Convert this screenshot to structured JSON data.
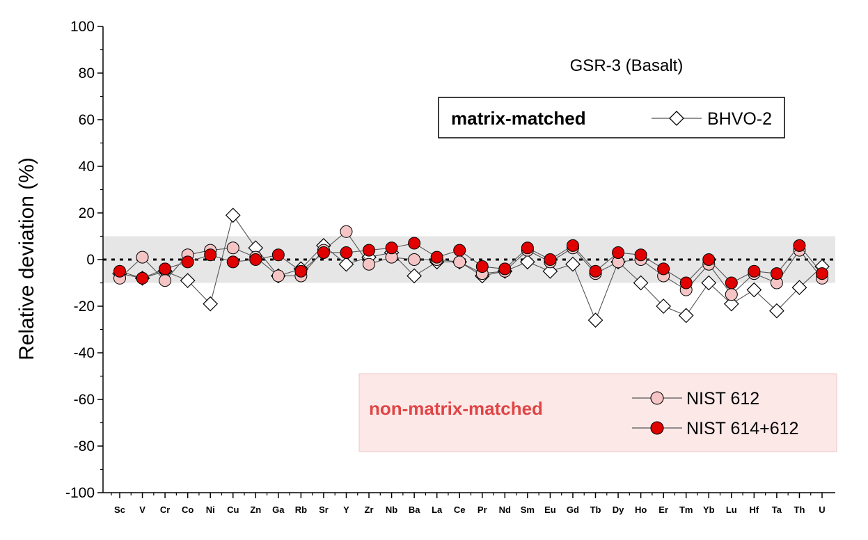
{
  "chart_data": {
    "type": "scatter",
    "title": "GSR-3 (Basalt)",
    "xlabel": "",
    "ylabel": "Relative deviation (%)",
    "ylim": [
      -100,
      100
    ],
    "yticks": [
      100,
      80,
      60,
      40,
      20,
      0,
      -20,
      -40,
      -60,
      -80,
      -100
    ],
    "reference_band": [
      -10,
      10
    ],
    "reference_line": 0,
    "categories": [
      "Sc",
      "V",
      "Cr",
      "Co",
      "Ni",
      "Cu",
      "Zn",
      "Ga",
      "Rb",
      "Sr",
      "Y",
      "Zr",
      "Nb",
      "Ba",
      "La",
      "Ce",
      "Pr",
      "Nd",
      "Sm",
      "Eu",
      "Gd",
      "Tb",
      "Dy",
      "Ho",
      "Er",
      "Tm",
      "Yb",
      "Lu",
      "Hf",
      "Ta",
      "Th",
      "U"
    ],
    "legend_groups": [
      {
        "label": "matrix-matched",
        "color": "#000000",
        "series": [
          "BHVO-2"
        ]
      },
      {
        "label": "non-matrix-matched",
        "color": "#e04545",
        "series": [
          "NIST 612",
          "NIST 614+612"
        ]
      }
    ],
    "series": [
      {
        "name": "BHVO-2",
        "marker": "diamond-open",
        "color": "#000000",
        "values": [
          -6,
          -8,
          -5,
          -9,
          -19,
          19,
          5,
          -7,
          -4,
          6,
          -2,
          1,
          3,
          -7,
          -1,
          -1,
          -7,
          -5,
          -1,
          -5,
          -2,
          -26,
          -1,
          -10,
          -20,
          -24,
          -10,
          -19,
          -13,
          -22,
          -12,
          -3
        ]
      },
      {
        "name": "NIST 612",
        "marker": "circle",
        "color": "#f5c5c5",
        "values": [
          -8,
          1,
          -9,
          2,
          4,
          5,
          1,
          -7,
          -7,
          4,
          12,
          -2,
          1,
          0,
          0,
          -1,
          -6,
          -5,
          4,
          -1,
          5,
          -6,
          -1,
          0,
          -7,
          -13,
          -2,
          -15,
          -6,
          -10,
          4,
          -8
        ]
      },
      {
        "name": "NIST 614+612",
        "marker": "circle",
        "color": "#e00000",
        "values": [
          -5,
          -8,
          -4,
          -1,
          2,
          -1,
          0,
          2,
          -5,
          3,
          3,
          4,
          5,
          7,
          1,
          4,
          -3,
          -4,
          5,
          0,
          6,
          -5,
          3,
          2,
          -4,
          -10,
          0,
          -10,
          -5,
          -6,
          6,
          -6
        ]
      }
    ]
  }
}
